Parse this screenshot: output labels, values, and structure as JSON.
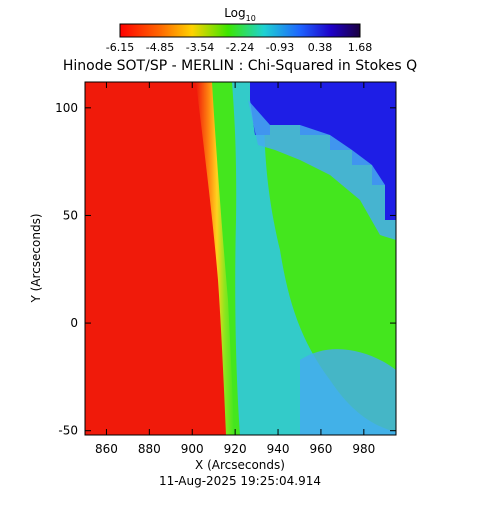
{
  "colorbar": {
    "label": "Log",
    "label_sub": "10",
    "ticks": [
      "-6.15",
      "-4.85",
      "-3.54",
      "-2.24",
      "-0.93",
      "0.38",
      "1.68"
    ],
    "range": [
      -6.15,
      1.68
    ]
  },
  "chart_data": {
    "type": "heatmap",
    "title": "Hinode SOT/SP - MERLIN : Chi-Squared in Stokes Q",
    "xlabel": "X (Arcseconds)",
    "ylabel": "Y (Arcseconds)",
    "xlim": [
      850,
      995
    ],
    "ylim": [
      -52,
      112
    ],
    "xticks": [
      860,
      880,
      900,
      920,
      940,
      960,
      980
    ],
    "yticks": [
      -50,
      0,
      50,
      100
    ],
    "footer": "11-Aug-2025 19:25:04.914",
    "colors": {
      "disk": "#f01a0a",
      "limb_bright": "#ffd21e",
      "limb_green": "#44e61e",
      "cyan": "#32c8dc",
      "light_blue": "#46aaf0",
      "top_right_blue": "#1e1ee6"
    }
  }
}
